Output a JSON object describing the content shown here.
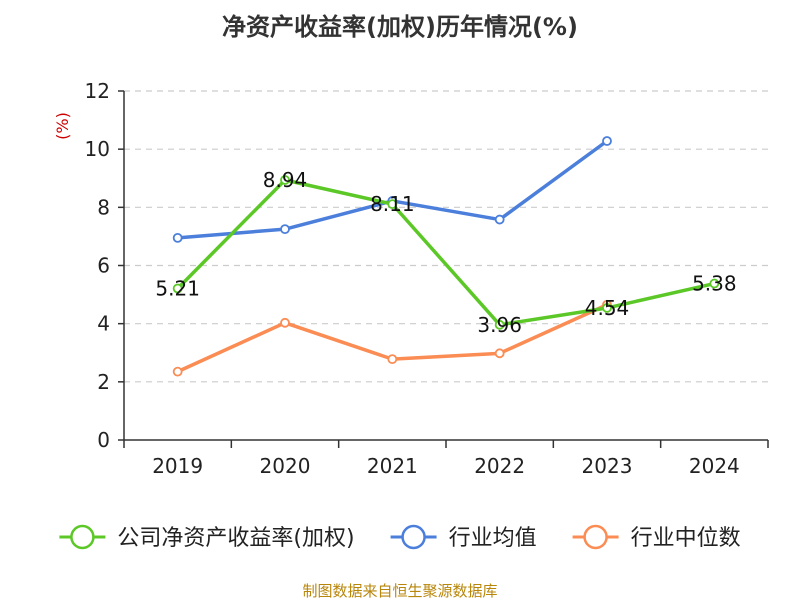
{
  "chart_data": {
    "type": "line",
    "title": "净资产收益率(加权)历年情况(%)",
    "ylabel": "(%)",
    "xlabel": "",
    "categories": [
      "2019",
      "2020",
      "2021",
      "2022",
      "2023",
      "2024"
    ],
    "ylim": [
      0,
      12
    ],
    "yticks": [
      0,
      2,
      4,
      6,
      8,
      10,
      12
    ],
    "grid": true,
    "legend_position": "bottom",
    "series": [
      {
        "name": "公司净资产收益率(加权)",
        "color": "#5cc827",
        "values": [
          5.21,
          8.94,
          8.11,
          3.96,
          4.54,
          5.38
        ],
        "labels": [
          "5.21",
          "8.94",
          "8.11",
          "3.96",
          "4.54",
          "5.38"
        ]
      },
      {
        "name": "行业均值",
        "color": "#4b7fdb",
        "values": [
          6.95,
          7.25,
          8.22,
          7.58,
          10.28,
          null
        ]
      },
      {
        "name": "行业中位数",
        "color": "#fa8c54",
        "values": [
          2.35,
          4.03,
          2.78,
          2.98,
          4.65,
          null
        ]
      }
    ],
    "source": "制图数据来自恒生聚源数据库",
    "colors": {
      "ylabel": "#cc0000",
      "source": "#b8860b",
      "grid": "#cccccc",
      "axis": "#333333"
    }
  }
}
